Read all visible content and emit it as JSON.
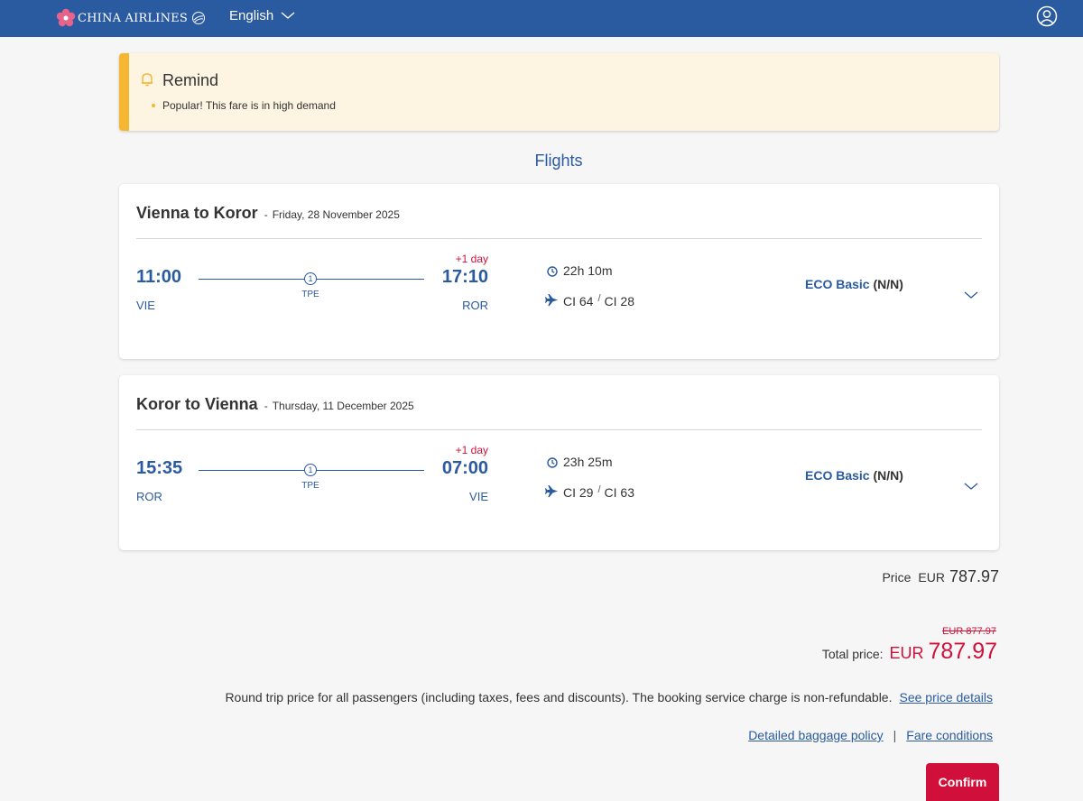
{
  "header": {
    "brand": "CHINA AIRLINES",
    "language": "English"
  },
  "remind": {
    "title": "Remind",
    "items": [
      "Popular! This fare is in high demand"
    ]
  },
  "section_title": "Flights",
  "flights": [
    {
      "route": "Vienna to Koror",
      "separator": "-",
      "date": "Friday, 28 November 2025",
      "dep_time": "11:00",
      "dep_code": "VIE",
      "arr_time": "17:10",
      "arr_code": "ROR",
      "plus_day": "+1 day",
      "stops": "1",
      "stop_code": "TPE",
      "duration": "22h 10m",
      "flight_1": "CI 64",
      "flight_2": "CI 28",
      "flight_sep": "/",
      "fare": "ECO Basic",
      "fare_code": "(N/N)"
    },
    {
      "route": "Koror to Vienna",
      "separator": "-",
      "date": "Thursday, 11 December 2025",
      "dep_time": "15:35",
      "dep_code": "ROR",
      "arr_time": "07:00",
      "arr_code": "VIE",
      "plus_day": "+1 day",
      "stops": "1",
      "stop_code": "TPE",
      "duration": "23h 25m",
      "flight_1": "CI 29",
      "flight_2": "CI 63",
      "flight_sep": "/",
      "fare": "ECO Basic",
      "fare_code": "(N/N)"
    }
  ],
  "price": {
    "label": "Price",
    "currency": "EUR",
    "value": "787.97"
  },
  "total": {
    "old_price": "EUR 877.97",
    "label": "Total price:",
    "currency": "EUR",
    "value": "787.97"
  },
  "note": {
    "text": "Round trip price for all passengers (including taxes, fees and discounts). The booking service charge is non-refundable.",
    "link": "See price details"
  },
  "links": {
    "baggage": "Detailed baggage policy",
    "separator": "|",
    "fare_conditions": "Fare conditions"
  },
  "confirm_label": "Confirm",
  "colors": {
    "brand_blue": "#2a5aa0",
    "accent_red": "#d0103a",
    "remind_bg": "#fdf4e2",
    "remind_bar": "#f5b731"
  }
}
